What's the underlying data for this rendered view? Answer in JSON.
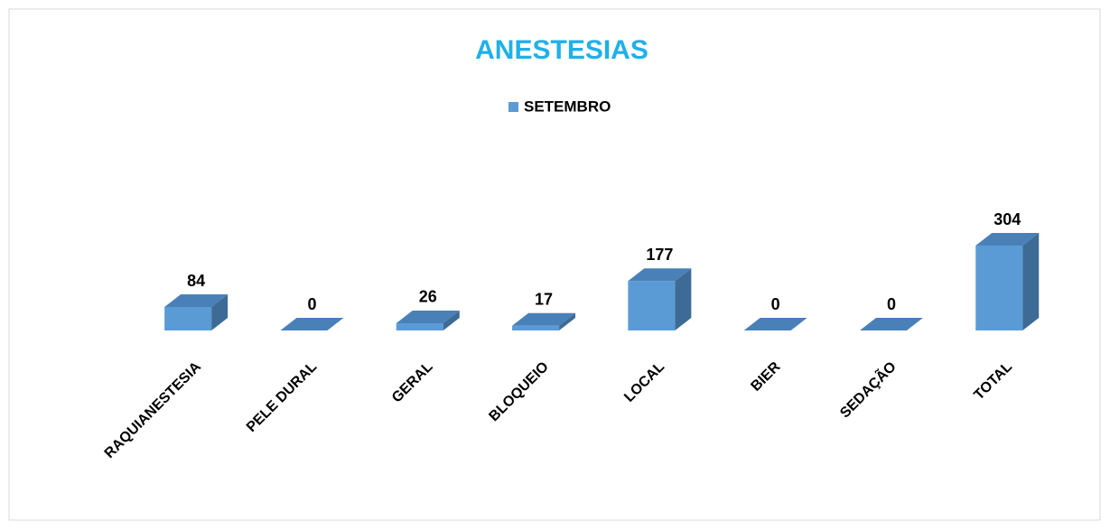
{
  "chart_data": {
    "type": "bar3d",
    "title": "ANESTESIAS",
    "categories": [
      "RAQUIANESTESIA",
      "PELE DURAL",
      "GERAL",
      "BLOQUEIO",
      "LOCAL",
      "BIER",
      "SEDAÇÃO",
      "TOTAL"
    ],
    "series": [
      {
        "name": "SETEMBRO",
        "color": "#5b9bd5",
        "values": [
          84,
          0,
          26,
          17,
          177,
          0,
          0,
          304
        ]
      }
    ]
  }
}
